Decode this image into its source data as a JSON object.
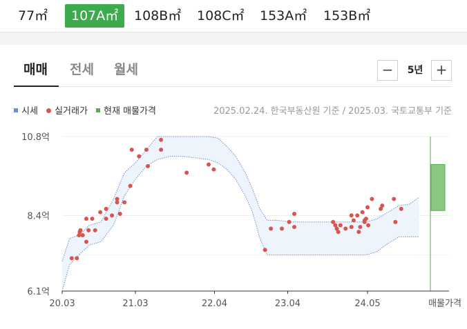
{
  "area_tabs": [
    "77㎡",
    "107A㎡",
    "108B㎡",
    "108C㎡",
    "153A㎡",
    "153B㎡"
  ],
  "area_active": 1,
  "trade_tabs": [
    "매매",
    "전세",
    "월세"
  ],
  "trade_active": 0,
  "period": {
    "label": "5년",
    "minus": "−",
    "plus": "+"
  },
  "legend": {
    "market": "시세",
    "trade": "실거래가",
    "listing": "현재 매물가격"
  },
  "source": "2025.02.24. 한국부동산원 기준 / 2025.03. 국토교통부 기준",
  "colors": {
    "market": "#6b8fd6",
    "band": "#eef4fc",
    "trade": "#d9534f",
    "listing": "#5aaa55",
    "active_tab": "#3daa4e"
  },
  "chart_data": {
    "type": "scatter",
    "y_unit": "억",
    "ylim": [
      6.1,
      10.8
    ],
    "y_ticks": [
      {
        "value": 10.8,
        "label": "10.8억"
      },
      {
        "value": 8.4,
        "label": "8.4억"
      },
      {
        "value": 6.1,
        "label": "6.1억"
      }
    ],
    "x_ticks": [
      {
        "value": 2020.25,
        "label": "20.03"
      },
      {
        "value": 2021.25,
        "label": "21.03"
      },
      {
        "value": 2022.33,
        "label": "22.04"
      },
      {
        "value": 2023.33,
        "label": "23.04"
      },
      {
        "value": 2024.42,
        "label": "24.05"
      }
    ],
    "x_end_label": "매물가격",
    "xlim": [
      2020.25,
      2025.25
    ],
    "series": [
      {
        "name": "시세",
        "type": "band",
        "x": [
          2020.25,
          2020.35,
          2020.48,
          2020.62,
          2020.78,
          2020.95,
          2021.1,
          2021.25,
          2021.4,
          2021.55,
          2021.72,
          2021.9,
          2022.08,
          2022.25,
          2022.38,
          2022.5,
          2022.62,
          2022.75,
          2022.85,
          2022.95,
          2023.05,
          2023.2,
          2023.4,
          2023.6,
          2023.8,
          2024.0,
          2024.2,
          2024.4,
          2024.55,
          2024.7,
          2024.85,
          2025.0,
          2025.12
        ],
        "upper": [
          7.0,
          7.7,
          7.8,
          8.1,
          8.2,
          8.9,
          9.7,
          10.0,
          10.4,
          10.8,
          10.8,
          10.8,
          10.8,
          10.8,
          10.75,
          10.5,
          10.2,
          9.7,
          9.2,
          8.6,
          8.25,
          8.25,
          8.2,
          8.2,
          8.2,
          8.2,
          8.2,
          8.2,
          8.3,
          8.5,
          8.7,
          8.75,
          8.95
        ],
        "lower": [
          6.1,
          6.9,
          7.2,
          7.5,
          7.6,
          8.1,
          9.0,
          9.5,
          9.9,
          10.1,
          10.2,
          10.2,
          10.15,
          10.1,
          10.0,
          9.8,
          9.5,
          9.0,
          8.5,
          7.7,
          7.2,
          7.2,
          7.2,
          7.2,
          7.2,
          7.2,
          7.2,
          7.2,
          7.3,
          7.55,
          7.75,
          7.75,
          7.75
        ]
      },
      {
        "name": "실거래가",
        "type": "scatter",
        "points": [
          [
            2020.38,
            7.1
          ],
          [
            2020.45,
            7.1
          ],
          [
            2020.48,
            7.8
          ],
          [
            2020.49,
            7.9
          ],
          [
            2020.5,
            7.95
          ],
          [
            2020.53,
            7.8
          ],
          [
            2020.58,
            7.6
          ],
          [
            2020.58,
            8.3
          ],
          [
            2020.61,
            7.95
          ],
          [
            2020.66,
            8.3
          ],
          [
            2020.7,
            7.95
          ],
          [
            2020.77,
            8.5
          ],
          [
            2020.85,
            8.3
          ],
          [
            2020.85,
            8.6
          ],
          [
            2020.93,
            8.4
          ],
          [
            2021.0,
            8.8
          ],
          [
            2021.0,
            8.9
          ],
          [
            2021.04,
            8.45
          ],
          [
            2021.1,
            8.8
          ],
          [
            2021.18,
            9.3
          ],
          [
            2021.2,
            10.4
          ],
          [
            2021.3,
            10.2
          ],
          [
            2021.4,
            10.4
          ],
          [
            2021.42,
            9.9
          ],
          [
            2021.6,
            10.7
          ],
          [
            2021.6,
            10.4
          ],
          [
            2021.95,
            9.7
          ],
          [
            2022.25,
            9.95
          ],
          [
            2022.32,
            9.8
          ],
          [
            2023.02,
            7.35
          ],
          [
            2023.1,
            8.0
          ],
          [
            2023.25,
            8.0
          ],
          [
            2023.35,
            8.2
          ],
          [
            2023.42,
            8.45
          ],
          [
            2023.42,
            8.05
          ],
          [
            2023.95,
            8.2
          ],
          [
            2023.98,
            8.1
          ],
          [
            2024.0,
            8.0
          ],
          [
            2024.02,
            7.9
          ],
          [
            2024.05,
            8.1
          ],
          [
            2024.12,
            8.0
          ],
          [
            2024.2,
            8.4
          ],
          [
            2024.2,
            8.05
          ],
          [
            2024.23,
            8.25
          ],
          [
            2024.28,
            8.4
          ],
          [
            2024.3,
            7.9
          ],
          [
            2024.32,
            8.05
          ],
          [
            2024.35,
            8.5
          ],
          [
            2024.38,
            8.2
          ],
          [
            2024.38,
            8.25
          ],
          [
            2024.4,
            8.3
          ],
          [
            2024.42,
            8.65
          ],
          [
            2024.43,
            8.1
          ],
          [
            2024.48,
            8.9
          ],
          [
            2024.6,
            8.6
          ],
          [
            2024.62,
            8.7
          ],
          [
            2024.78,
            8.9
          ],
          [
            2024.8,
            8.2
          ],
          [
            2024.88,
            8.6
          ]
        ]
      },
      {
        "name": "현재 매물가격",
        "type": "range",
        "low": 8.55,
        "high": 9.95
      }
    ]
  }
}
